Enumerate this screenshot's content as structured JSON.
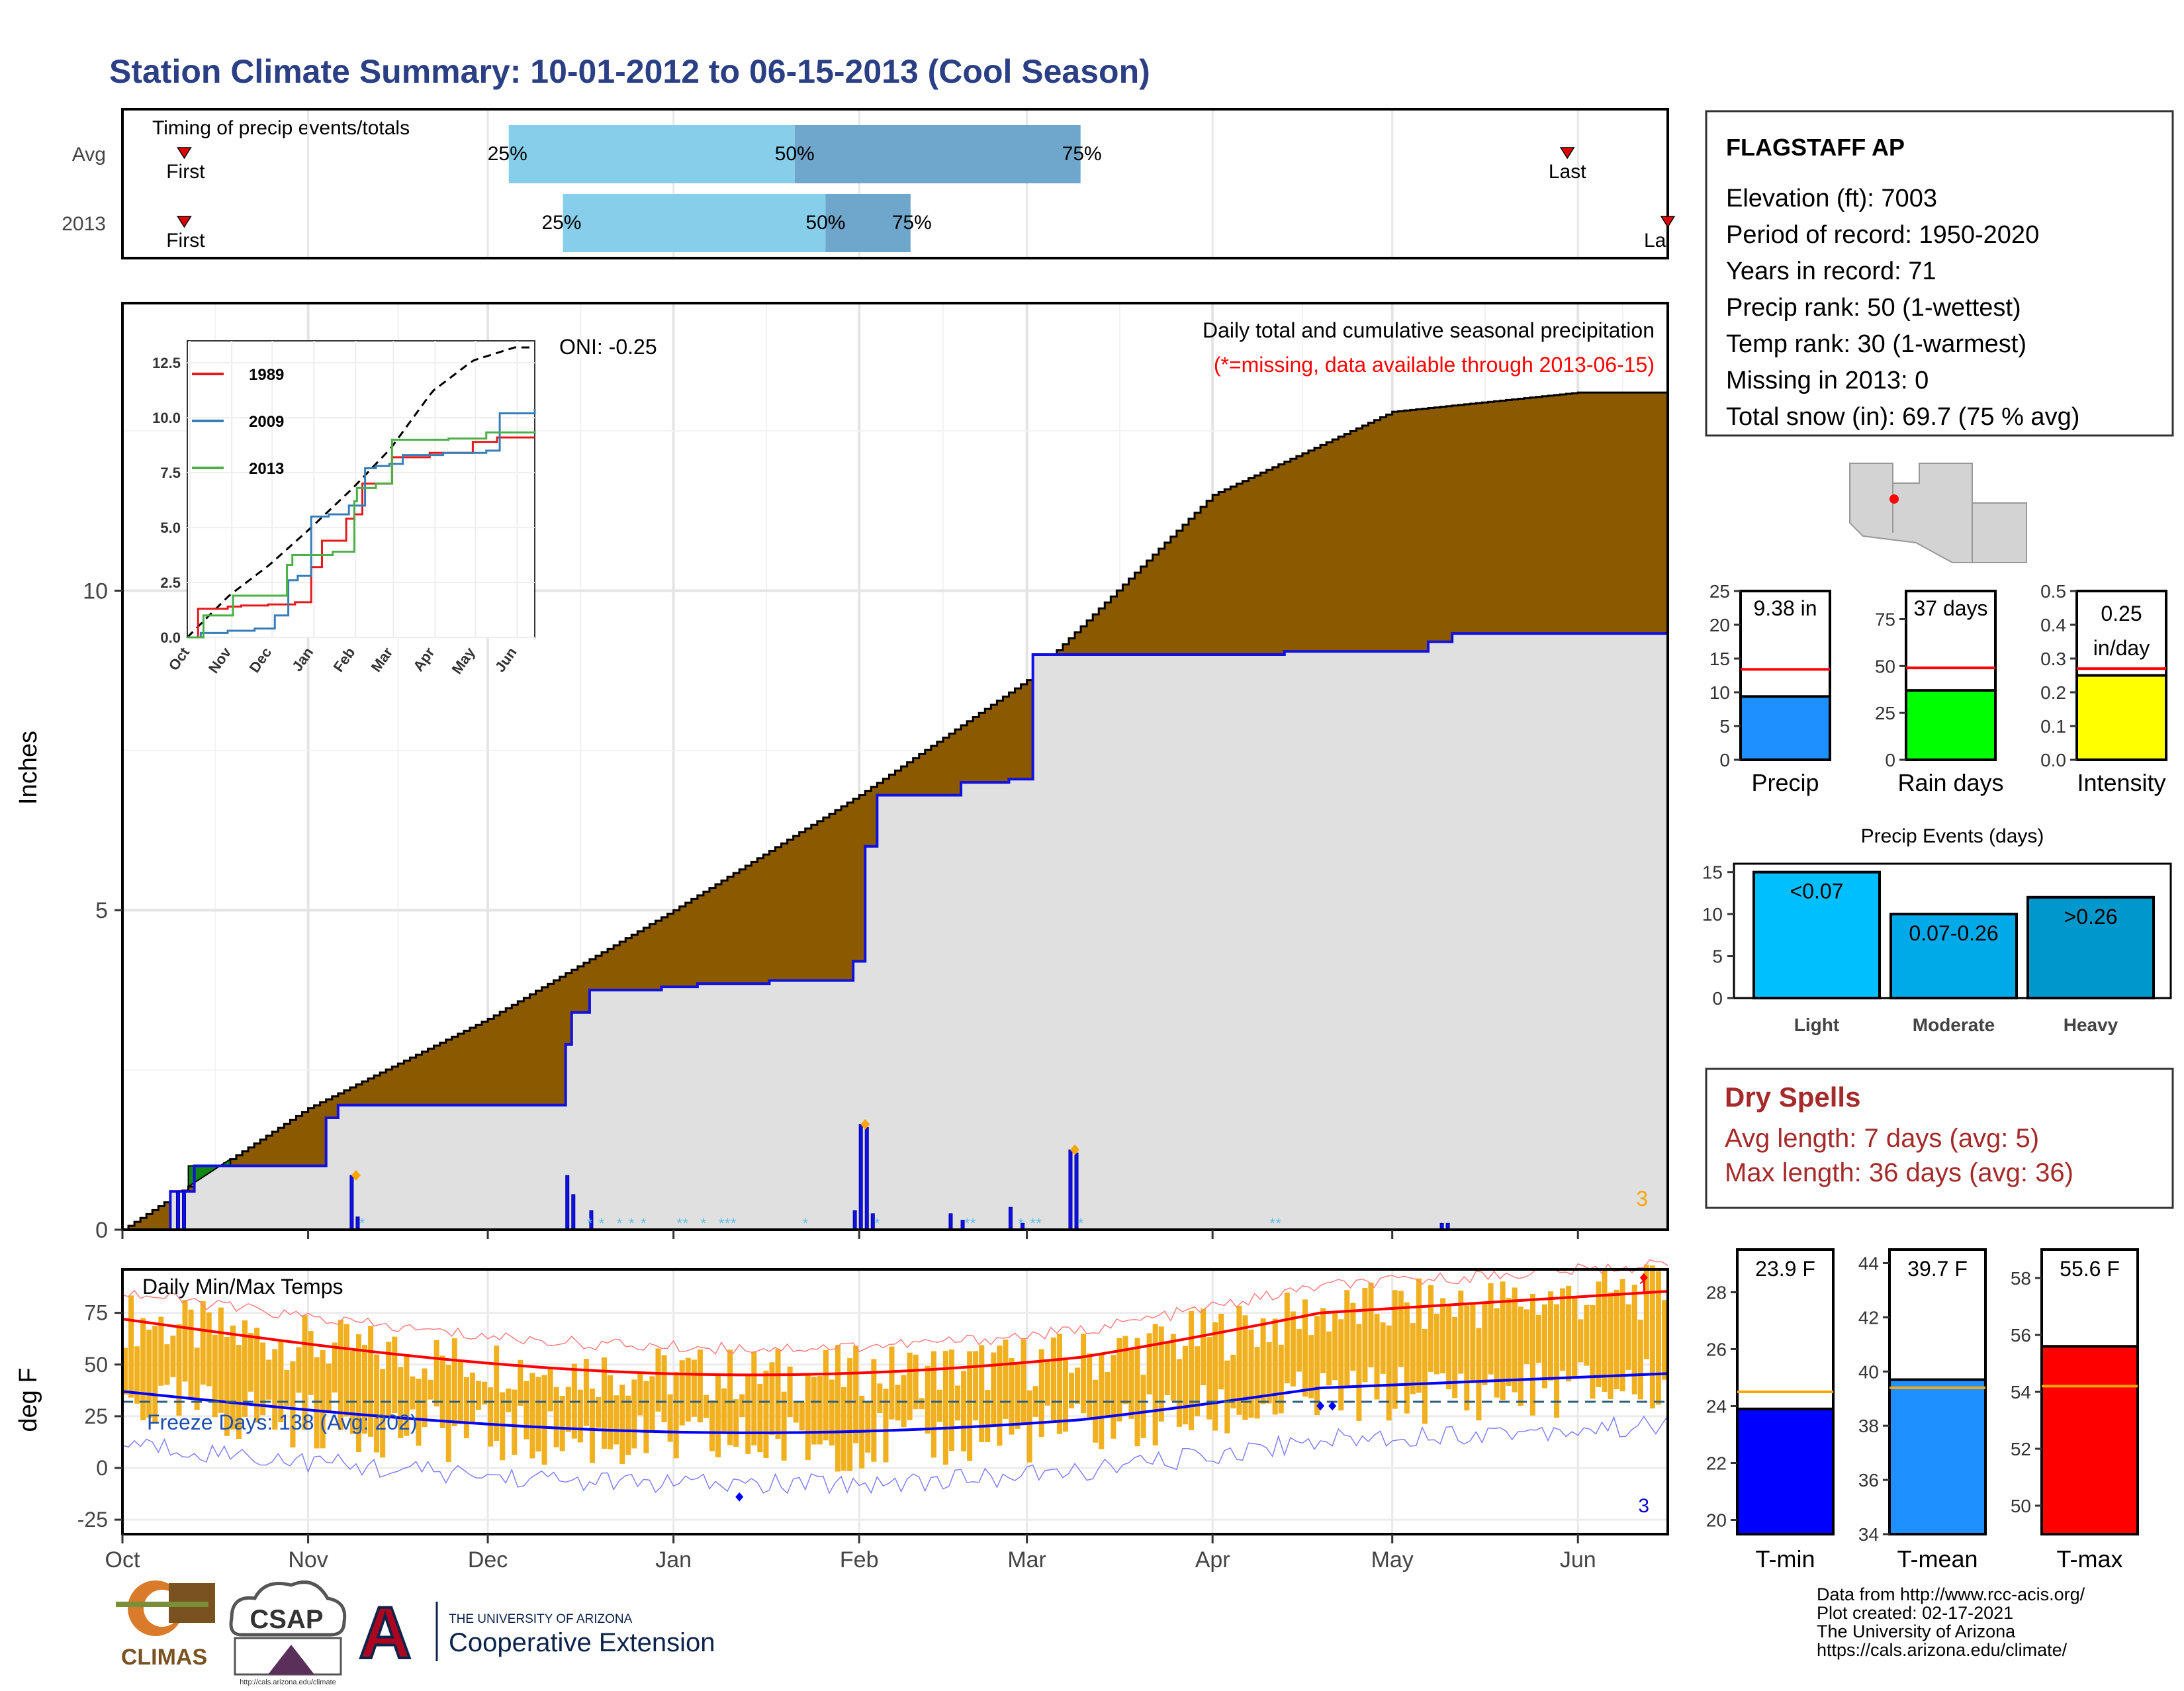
{
  "title": "Station Climate Summary: 10-01-2012 to 06-15-2013 (Cool Season)",
  "colors": {
    "title": "#2B3F84",
    "cum_fill": "#8B5A00",
    "cum_grey": "#E0E0E0",
    "blue_line": "#1010E0",
    "red": "#FF0000",
    "green": "#00CC00",
    "yellow": "#FFFF00",
    "precip_bar": "#1E90FF",
    "orange_bar": "#F0B020",
    "light_event": "#00BFFF",
    "moderate_event": "#00A9E8",
    "heavy_event": "#0098CC",
    "dry_text": "#A52A2A",
    "tmin": "#0000FF",
    "tmean": "#1E90FF",
    "tmax": "#FF0000",
    "timing_light": "#87CEEB",
    "timing_dark": "#6EA6CC"
  },
  "timing": {
    "label": "Timing of precip events/totals",
    "rows": [
      {
        "name": "Avg",
        "first_label": "First",
        "last_label": "Last",
        "first": "Oct 10",
        "last": "Jun 1",
        "p25_label": "25%",
        "p50_label": "50%",
        "p75_label": "75%",
        "p25": 0.25,
        "p50": 0.435,
        "p75": 0.62,
        "first_x": 0.04,
        "last_x": 0.935
      },
      {
        "name": "2013",
        "first_label": "First",
        "last_label": "La",
        "first": "Oct 10",
        "last": "Jun 15",
        "p25_label": "25%",
        "p50_label": "50%",
        "p75_label": "75%",
        "p25": 0.285,
        "p50": 0.455,
        "p75": 0.51,
        "first_x": 0.04,
        "last_x": 1.0
      }
    ]
  },
  "main": {
    "ylabel": "Inches",
    "oni": "ONI: -0.25",
    "title": "Daily total and cumulative seasonal precipitation",
    "subtitle": "(*=missing, data available through 2013-06-15)",
    "corner_value": "3",
    "yticks": [
      "0",
      "5",
      "10"
    ]
  },
  "inset": {
    "yticks": [
      "0.0",
      "2.5",
      "5.0",
      "7.5",
      "10.0",
      "12.5"
    ],
    "xticks": [
      "Oct",
      "Nov",
      "Dec",
      "Jan",
      "Feb",
      "Mar",
      "Apr",
      "May",
      "Jun"
    ],
    "legend": [
      {
        "name": "1989",
        "color": "#E41A1C"
      },
      {
        "name": "2009",
        "color": "#377EB8"
      },
      {
        "name": "2013",
        "color": "#4DAF4A"
      }
    ]
  },
  "temps": {
    "label": "Daily Min/Max Temps",
    "ylabel": "deg F",
    "freeze": "Freeze Days: 138 (Avg: 202)",
    "yticks": [
      "-25",
      "0",
      "25",
      "50",
      "75"
    ],
    "corner_top": "1",
    "corner_bottom": "3"
  },
  "months": [
    "Oct",
    "Nov",
    "Dec",
    "Jan",
    "Feb",
    "Mar",
    "Apr",
    "May",
    "Jun"
  ],
  "station": {
    "name": "FLAGSTAFF AP",
    "lines": [
      "Elevation (ft): 7003",
      "Period of record: 1950-2020",
      "Years in record: 71",
      "Precip rank: 50 (1-wettest)",
      "Temp rank: 30 (1-warmest)",
      "Missing in 2013: 0",
      "Total snow (in): 69.7 (75 % avg)"
    ]
  },
  "mini_bars": [
    {
      "label": "Precip",
      "value_label": "9.38 in",
      "value": 9.38,
      "avg": 13.4,
      "max": 25,
      "ticks": [
        "0",
        "5",
        "10",
        "15",
        "20",
        "25"
      ],
      "color": "#1E90FF"
    },
    {
      "label": "Rain days",
      "value_label": "37 days",
      "value": 37,
      "avg": 49,
      "max": 90,
      "ticks": [
        "0",
        "25",
        "50",
        "75"
      ],
      "color": "#00FF00"
    },
    {
      "label": "Intensity",
      "value_label": "0.25 in/day",
      "value": 0.25,
      "avg": 0.27,
      "max": 0.5,
      "ticks": [
        "0.0",
        "0.1",
        "0.2",
        "0.3",
        "0.4",
        "0.5"
      ],
      "color": "#FFFF00"
    }
  ],
  "events": {
    "title": "Precip Events (days)",
    "ticks": [
      "0",
      "5",
      "10",
      "15"
    ],
    "bars": [
      {
        "name": "Light",
        "label": "<0.07",
        "value": 15,
        "color": "#00BFFF"
      },
      {
        "name": "Moderate",
        "label": "0.07-0.26",
        "value": 10,
        "color": "#00A9E8"
      },
      {
        "name": "Heavy",
        "label": ">0.26",
        "value": 12,
        "color": "#0098CC"
      }
    ]
  },
  "dry_spells": {
    "title": "Dry Spells",
    "avg": "Avg length: 7 days (avg: 5)",
    "max": "Max length: 36 days (avg: 36)"
  },
  "temp_bars": [
    {
      "label": "T-min",
      "value_label": "23.9 F",
      "value": 23.9,
      "avg": 24.5,
      "min": 19.5,
      "max": 29.5,
      "ticks": [
        "20",
        "22",
        "24",
        "26",
        "28"
      ],
      "color": "#0000FF"
    },
    {
      "label": "T-mean",
      "value_label": "39.7 F",
      "value": 39.7,
      "avg": 39.4,
      "min": 34,
      "max": 44.5,
      "ticks": [
        "34",
        "36",
        "38",
        "40",
        "42",
        "44"
      ],
      "color": "#1E90FF"
    },
    {
      "label": "T-max",
      "value_label": "55.6 F",
      "value": 55.6,
      "avg": 54.2,
      "min": 49,
      "max": 59,
      "ticks": [
        "50",
        "52",
        "54",
        "56",
        "58"
      ],
      "color": "#FF0000"
    }
  ],
  "footer": {
    "lines": [
      "Data from http://www.rcc-acis.org/",
      "Plot created: 02-17-2021",
      "The University of Arizona",
      "https://cals.arizona.edu/climate/"
    ],
    "ua_small": "THE UNIVERSITY OF ARIZONA",
    "ua_big": "Cooperative Extension",
    "climas": "CLIMAS",
    "csap": "CSAP",
    "csap_url": "http://cals.arizona.edu/climate",
    "ua_logo": "A"
  },
  "chart_data": {
    "type": "area",
    "title": "Daily total and cumulative seasonal precipitation",
    "ylabel": "Inches",
    "ylim": [
      0,
      14.5
    ],
    "x": [
      "Oct",
      "Nov",
      "Dec",
      "Jan",
      "Feb",
      "Mar",
      "Apr",
      "May",
      "Jun"
    ],
    "series": [
      {
        "name": "",
        "values": [
          0,
          1.9,
          3.3,
          5.0,
          6.8,
          8.6,
          11.5,
          12.8,
          13.1
        ]
      },
      {
        "name": "2013",
        "values": [
          0,
          1.0,
          2.0,
          3.9,
          4.2,
          7.3,
          9.0,
          9.1,
          9.38
        ]
      }
    ]
  }
}
